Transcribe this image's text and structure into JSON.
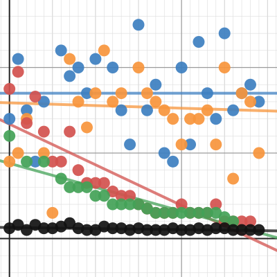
{
  "chart_data": {
    "type": "scatter",
    "title": "",
    "xlabel": "",
    "ylabel": "",
    "xlim": [
      -1.1,
      31.1
    ],
    "ylim": [
      -2.25,
      13.95
    ],
    "grid": true,
    "legend": "none",
    "colors": {
      "blue": "#3d7fc0",
      "orange": "#f7953c",
      "red": "#d2514e",
      "green": "#43a257",
      "black": "#111111",
      "gridline": "#dddddd",
      "axis": "#222222"
    },
    "series": [
      {
        "color": "#3d7fc0",
        "x": [
          0,
          1,
          2,
          3,
          4,
          6,
          7,
          8,
          9,
          10,
          12,
          13,
          14,
          15,
          16,
          17,
          18,
          19,
          20,
          21,
          22,
          23,
          24,
          25,
          26,
          27,
          28,
          29
        ],
        "y": [
          7.0,
          10.5,
          7.5,
          4.5,
          8.0,
          11.0,
          9.5,
          10.0,
          8.5,
          10.5,
          10.0,
          7.5,
          5.5,
          12.5,
          7.5,
          9.0,
          5.0,
          4.5,
          10.0,
          5.5,
          11.5,
          8.5,
          7.0,
          12.0,
          7.5,
          8.5,
          9.0,
          8.0
        ],
        "trend": {
          "y0": 8.5,
          "y1": 8.5
        }
      },
      {
        "color": "#f7953c",
        "x": [
          0,
          1,
          2,
          4,
          5,
          7,
          8,
          9,
          10,
          11,
          12,
          13,
          15,
          16,
          17,
          18,
          19,
          20,
          21,
          22,
          23,
          24,
          25,
          26,
          27,
          28,
          29
        ],
        "y": [
          4.5,
          5.0,
          7.0,
          5.0,
          1.5,
          10.5,
          8.0,
          6.5,
          8.5,
          11.0,
          8.0,
          8.5,
          10.0,
          8.5,
          8.0,
          7.5,
          7.0,
          5.5,
          7.0,
          7.0,
          7.5,
          5.5,
          10.0,
          3.5,
          8.5,
          8.0,
          5.0
        ],
        "trend": {
          "y0": 7.95,
          "y1": 7.45
        }
      },
      {
        "color": "#d2514e",
        "x": [
          0,
          1,
          2,
          3,
          4,
          5,
          6,
          7,
          8,
          9,
          10,
          11,
          12,
          13,
          14,
          15,
          16,
          17,
          18,
          19,
          20,
          21,
          22,
          23,
          24,
          25,
          26,
          27,
          28
        ],
        "y": [
          8.75,
          9.75,
          6.75,
          8.3,
          6.25,
          4.5,
          4.5,
          6.25,
          4.0,
          3.25,
          3.25,
          3.25,
          2.75,
          2.5,
          2.5,
          2.0,
          1.75,
          1.5,
          1.5,
          1.5,
          2.0,
          1.5,
          1.5,
          1.5,
          2.0,
          1.0,
          1.0,
          1.0,
          1.0
        ],
        "trend": {
          "y0": 6.95,
          "y1": -0.7
        }
      },
      {
        "color": "#43a257",
        "x": [
          0,
          2,
          4,
          6,
          7,
          8,
          9,
          10,
          11,
          12,
          13,
          14,
          15,
          16,
          17,
          18,
          19,
          20,
          21,
          22,
          23,
          24,
          25,
          26
        ],
        "y": [
          6.0,
          4.5,
          4.5,
          3.5,
          3.0,
          3.0,
          3.0,
          2.5,
          2.5,
          2.0,
          2.0,
          2.0,
          2.0,
          1.75,
          1.5,
          1.5,
          1.5,
          1.5,
          1.5,
          1.5,
          1.5,
          1.5,
          1.25,
          1.0
        ],
        "trend": {
          "y0": 4.55,
          "y1": 0.05
        }
      },
      {
        "color": "#111111",
        "x": [
          0,
          1,
          2,
          3,
          4,
          5,
          6,
          7,
          8,
          9,
          10,
          11,
          12,
          13,
          14,
          15,
          16,
          17,
          18,
          19,
          20,
          21,
          22,
          23,
          24,
          25,
          26,
          27,
          28,
          29
        ],
        "y": [
          0.6,
          0.8,
          0.5,
          0.8,
          0.6,
          0.6,
          0.7,
          0.9,
          0.6,
          0.5,
          0.5,
          0.7,
          0.6,
          0.6,
          0.5,
          0.6,
          0.5,
          0.5,
          0.5,
          0.6,
          0.5,
          0.5,
          0.6,
          0.5,
          0.6,
          0.6,
          0.5,
          0.5,
          0.5,
          0.5
        ],
        "trend": {
          "y0": 0.65,
          "y1": 0.45
        }
      }
    ]
  }
}
